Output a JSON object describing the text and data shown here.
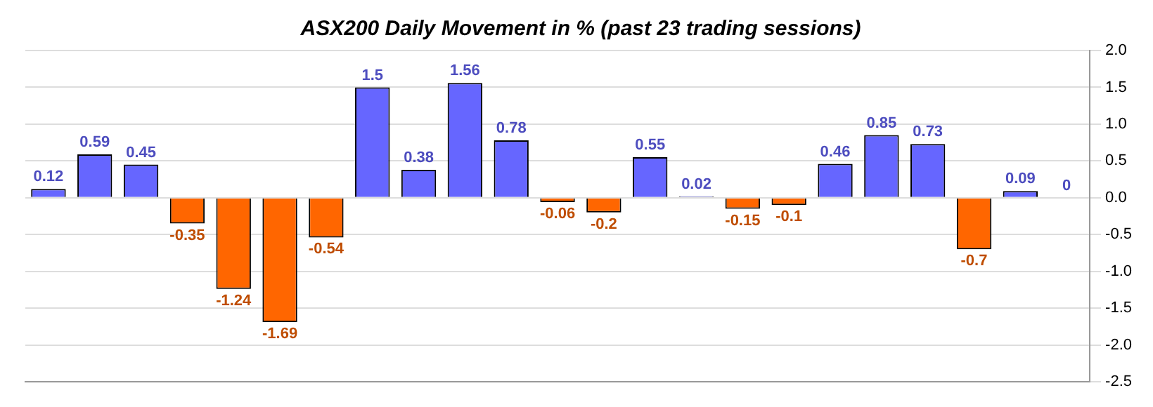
{
  "chart_data": {
    "type": "bar",
    "title": "ASX200 Daily Movement in % (past 23 trading sessions)",
    "categories": [
      null,
      null,
      null,
      null,
      null,
      null,
      null,
      null,
      null,
      null,
      null,
      null,
      null,
      null,
      null,
      null,
      null,
      null,
      null,
      null,
      null,
      null,
      null
    ],
    "values": [
      0.12,
      0.59,
      0.45,
      -0.35,
      -1.24,
      -1.69,
      -0.54,
      1.5,
      0.38,
      1.56,
      0.78,
      -0.06,
      -0.2,
      0.55,
      0.02,
      -0.15,
      -0.1,
      0.46,
      0.85,
      0.73,
      -0.7,
      0.09,
      0
    ],
    "colors": [
      "#6666ff",
      "#6666ff",
      "#6666ff",
      "#ff6600",
      "#ff6600",
      "#ff6600",
      "#ff6600",
      "#6666ff",
      "#6666ff",
      "#6666ff",
      "#6666ff",
      "#ff6600",
      "#ff6600",
      "#6666ff",
      "#6666ff",
      "#ff6600",
      "#ff6600",
      "#6666ff",
      "#6666ff",
      "#6666ff",
      "#ff6600",
      "#6666ff",
      "#6666ff"
    ],
    "ylim": [
      -2.5,
      2.0
    ],
    "yticks": [
      {
        "value": 2.0,
        "label": "2.0"
      },
      1.5,
      {
        "value": 1.0,
        "label": "1.0"
      },
      0.5,
      {
        "value": 0.0,
        "label": "0.0"
      },
      -0.5,
      {
        "value": -1.0,
        "label": "-1.0"
      },
      -1.5,
      {
        "value": -2.0,
        "label": "-2.0"
      },
      -2.5
    ],
    "grid": "y",
    "legend": false,
    "data_labels": true
  }
}
